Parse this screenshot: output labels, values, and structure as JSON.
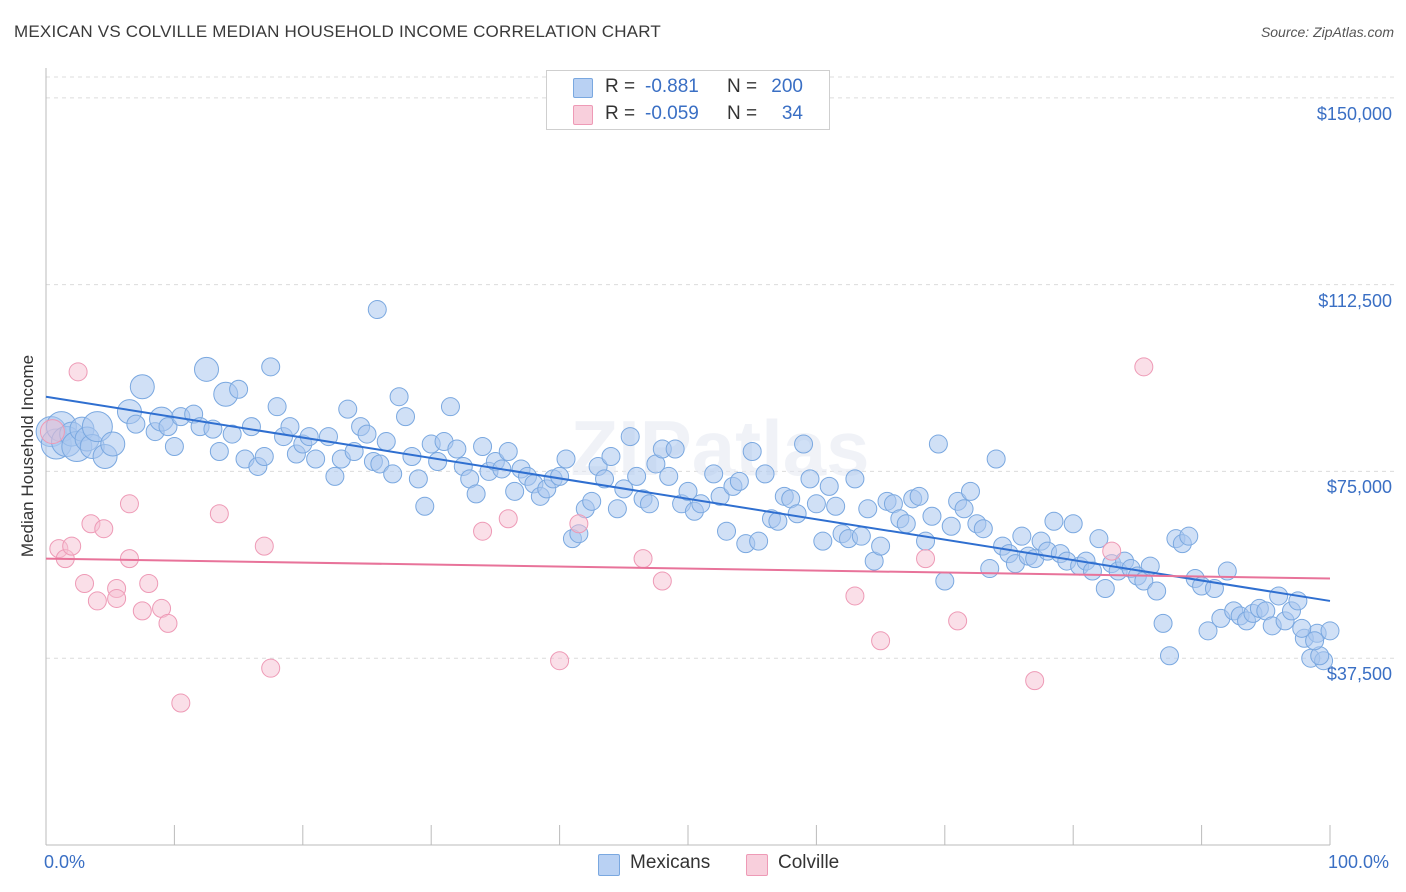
{
  "chart_data": {
    "type": "scatter",
    "title": "MEXICAN VS COLVILLE MEDIAN HOUSEHOLD INCOME CORRELATION CHART",
    "source": "Source: ZipAtlas.com",
    "ylabel": "Median Household Income",
    "xlim": [
      0,
      100
    ],
    "ylim": [
      0,
      157000
    ],
    "grid": "horizontal dashed",
    "legend_placement": "top-center and bottom-center",
    "x_tick_labels": {
      "left": "0.0%",
      "right": "100.0%"
    },
    "y_ticks": [
      {
        "value": 37500,
        "label": "$37,500"
      },
      {
        "value": 75000,
        "label": "$75,000"
      },
      {
        "value": 112500,
        "label": "$112,500"
      },
      {
        "value": 150000,
        "label": "$150,000"
      }
    ],
    "watermark": "ZIPatlas",
    "legend": [
      {
        "name": "Mexicans",
        "r_label": "R =",
        "r_value": "-0.881",
        "n_label": "N =",
        "n_value": "200",
        "color": "#8db6e8",
        "fill": "#a9c7ef"
      },
      {
        "name": "Colville",
        "r_label": "R =",
        "r_value": "-0.059",
        "n_label": "N =",
        "n_value": "34",
        "color": "#ee9ab6",
        "fill": "#f6c0d2"
      }
    ],
    "series": [
      {
        "name": "Mexicans",
        "color": "#7aa8e0",
        "line_color": "#2f6fd0",
        "trend": {
          "x": [
            0,
            100
          ],
          "y": [
            90000,
            49000
          ]
        },
        "points": [
          [
            0.4,
            83000,
            3
          ],
          [
            0.8,
            80500,
            3
          ],
          [
            1.2,
            84000,
            3
          ],
          [
            1.6,
            81000,
            3
          ],
          [
            2.0,
            82500,
            2
          ],
          [
            2.4,
            80000,
            3
          ],
          [
            2.8,
            83500,
            2
          ],
          [
            3.2,
            81500,
            2
          ],
          [
            3.6,
            80000,
            2
          ],
          [
            4.0,
            84000,
            3
          ],
          [
            4.6,
            78000,
            2
          ],
          [
            5.2,
            80500,
            2
          ],
          [
            6.5,
            87000,
            2
          ],
          [
            7.0,
            84500,
            1
          ],
          [
            7.5,
            92000,
            2
          ],
          [
            8.5,
            83000,
            1
          ],
          [
            9.0,
            85500,
            2
          ],
          [
            9.5,
            84000,
            1
          ],
          [
            10.0,
            80000,
            1
          ],
          [
            10.5,
            86000,
            1
          ],
          [
            11.5,
            86500,
            1
          ],
          [
            12.0,
            84000,
            1
          ],
          [
            12.5,
            95500,
            2
          ],
          [
            13.0,
            83500,
            1
          ],
          [
            13.5,
            79000,
            1
          ],
          [
            14.0,
            90500,
            2
          ],
          [
            14.5,
            82500,
            1
          ],
          [
            15.0,
            91500,
            1
          ],
          [
            15.5,
            77500,
            1
          ],
          [
            16.0,
            84000,
            1
          ],
          [
            16.5,
            76000,
            1
          ],
          [
            17.0,
            78000,
            1
          ],
          [
            17.5,
            96000,
            1
          ],
          [
            18.0,
            88000,
            1
          ],
          [
            18.5,
            82000,
            1
          ],
          [
            19.0,
            84000,
            1
          ],
          [
            19.5,
            78500,
            1
          ],
          [
            20.0,
            80500,
            1
          ],
          [
            20.5,
            82000,
            1
          ],
          [
            21.0,
            77500,
            1
          ],
          [
            22.0,
            82000,
            1
          ],
          [
            22.5,
            74000,
            1
          ],
          [
            23.0,
            77500,
            1
          ],
          [
            23.5,
            87500,
            1
          ],
          [
            24.0,
            79000,
            1
          ],
          [
            24.5,
            84000,
            1
          ],
          [
            25.0,
            82500,
            1
          ],
          [
            25.5,
            77000,
            1
          ],
          [
            25.8,
            107500,
            1
          ],
          [
            26.0,
            76500,
            1
          ],
          [
            26.5,
            81000,
            1
          ],
          [
            27.0,
            74500,
            1
          ],
          [
            27.5,
            90000,
            1
          ],
          [
            28.0,
            86000,
            1
          ],
          [
            28.5,
            78000,
            1
          ],
          [
            29.0,
            73500,
            1
          ],
          [
            29.5,
            68000,
            1
          ],
          [
            30.0,
            80500,
            1
          ],
          [
            30.5,
            77000,
            1
          ],
          [
            31.0,
            81000,
            1
          ],
          [
            31.5,
            88000,
            1
          ],
          [
            32.0,
            79500,
            1
          ],
          [
            32.5,
            76000,
            1
          ],
          [
            33.0,
            73500,
            1
          ],
          [
            33.5,
            70500,
            1
          ],
          [
            34.0,
            80000,
            1
          ],
          [
            34.5,
            75000,
            1
          ],
          [
            35.0,
            77000,
            1
          ],
          [
            35.5,
            75500,
            1
          ],
          [
            36.0,
            79000,
            1
          ],
          [
            36.5,
            71000,
            1
          ],
          [
            37.0,
            75500,
            1
          ],
          [
            37.5,
            74000,
            1
          ],
          [
            38.0,
            72500,
            1
          ],
          [
            38.5,
            70000,
            1
          ],
          [
            39.0,
            71500,
            1
          ],
          [
            39.5,
            73500,
            1
          ],
          [
            40.0,
            74000,
            1
          ],
          [
            40.5,
            77500,
            1
          ],
          [
            41.0,
            61500,
            1
          ],
          [
            41.5,
            62500,
            1
          ],
          [
            42.0,
            67500,
            1
          ],
          [
            42.5,
            69000,
            1
          ],
          [
            43.0,
            76000,
            1
          ],
          [
            43.5,
            73500,
            1
          ],
          [
            44.0,
            78000,
            1
          ],
          [
            44.5,
            67500,
            1
          ],
          [
            45.0,
            71500,
            1
          ],
          [
            45.5,
            82000,
            1
          ],
          [
            46.0,
            74000,
            1
          ],
          [
            46.5,
            69500,
            1
          ],
          [
            47.0,
            68500,
            1
          ],
          [
            47.5,
            76500,
            1
          ],
          [
            48.0,
            79500,
            1
          ],
          [
            48.5,
            74000,
            1
          ],
          [
            49.0,
            79500,
            1
          ],
          [
            49.5,
            68500,
            1
          ],
          [
            50.0,
            71000,
            1
          ],
          [
            50.5,
            67000,
            1
          ],
          [
            51.0,
            68500,
            1
          ],
          [
            52.0,
            74500,
            1
          ],
          [
            52.5,
            70000,
            1
          ],
          [
            53.0,
            63000,
            1
          ],
          [
            53.5,
            72000,
            1
          ],
          [
            54.0,
            73000,
            1
          ],
          [
            54.5,
            60500,
            1
          ],
          [
            55.0,
            79000,
            1
          ],
          [
            55.5,
            61000,
            1
          ],
          [
            56.0,
            74500,
            1
          ],
          [
            56.5,
            65500,
            1
          ],
          [
            57.0,
            65000,
            1
          ],
          [
            57.5,
            70000,
            1
          ],
          [
            58.0,
            69500,
            1
          ],
          [
            58.5,
            66500,
            1
          ],
          [
            59.0,
            80500,
            1
          ],
          [
            59.5,
            73500,
            1
          ],
          [
            60.0,
            68500,
            1
          ],
          [
            60.5,
            61000,
            1
          ],
          [
            61.0,
            72000,
            1
          ],
          [
            61.5,
            68000,
            1
          ],
          [
            62.0,
            62500,
            1
          ],
          [
            62.5,
            61500,
            1
          ],
          [
            63.0,
            73500,
            1
          ],
          [
            63.5,
            62000,
            1
          ],
          [
            64.0,
            67500,
            1
          ],
          [
            64.5,
            57000,
            1
          ],
          [
            65.0,
            60000,
            1
          ],
          [
            65.5,
            69000,
            1
          ],
          [
            66.0,
            68500,
            1
          ],
          [
            66.5,
            65500,
            1
          ],
          [
            67.0,
            64500,
            1
          ],
          [
            67.5,
            69500,
            1
          ],
          [
            68.0,
            70000,
            1
          ],
          [
            68.5,
            61000,
            1
          ],
          [
            69.0,
            66000,
            1
          ],
          [
            69.5,
            80500,
            1
          ],
          [
            70.0,
            53000,
            1
          ],
          [
            70.5,
            64000,
            1
          ],
          [
            71.0,
            69000,
            1
          ],
          [
            71.5,
            67500,
            1
          ],
          [
            72.0,
            71000,
            1
          ],
          [
            72.5,
            64500,
            1
          ],
          [
            73.0,
            63500,
            1
          ],
          [
            73.5,
            55500,
            1
          ],
          [
            74.0,
            77500,
            1
          ],
          [
            74.5,
            60000,
            1
          ],
          [
            75.0,
            58500,
            1
          ],
          [
            75.5,
            56500,
            1
          ],
          [
            76.0,
            62000,
            1
          ],
          [
            76.5,
            58000,
            1
          ],
          [
            77.0,
            57500,
            1
          ],
          [
            77.5,
            61000,
            1
          ],
          [
            78.0,
            59000,
            1
          ],
          [
            78.5,
            65000,
            1
          ],
          [
            79.0,
            58500,
            1
          ],
          [
            79.5,
            57000,
            1
          ],
          [
            80.0,
            64500,
            1
          ],
          [
            80.5,
            56000,
            1
          ],
          [
            81.0,
            57000,
            1
          ],
          [
            81.5,
            55000,
            1
          ],
          [
            82.0,
            61500,
            1
          ],
          [
            82.5,
            51500,
            1
          ],
          [
            83.0,
            56500,
            1
          ],
          [
            83.5,
            55000,
            1
          ],
          [
            84.0,
            57000,
            1
          ],
          [
            84.5,
            55500,
            1
          ],
          [
            85.0,
            54000,
            1
          ],
          [
            85.5,
            53000,
            1
          ],
          [
            86.0,
            56000,
            1
          ],
          [
            86.5,
            51000,
            1
          ],
          [
            87.0,
            44500,
            1
          ],
          [
            87.5,
            38000,
            1
          ],
          [
            88.0,
            61500,
            1
          ],
          [
            88.5,
            60500,
            1
          ],
          [
            89.0,
            62000,
            1
          ],
          [
            89.5,
            53500,
            1
          ],
          [
            90.0,
            52000,
            1
          ],
          [
            90.5,
            43000,
            1
          ],
          [
            91.0,
            51500,
            1
          ],
          [
            91.5,
            45500,
            1
          ],
          [
            92.0,
            55000,
            1
          ],
          [
            92.5,
            47000,
            1
          ],
          [
            93.0,
            46000,
            1
          ],
          [
            93.5,
            45000,
            1
          ],
          [
            94.0,
            46500,
            1
          ],
          [
            94.5,
            47500,
            1
          ],
          [
            95.0,
            47000,
            1
          ],
          [
            95.5,
            44000,
            1
          ],
          [
            96.0,
            50000,
            1
          ],
          [
            96.5,
            45000,
            1
          ],
          [
            97.0,
            47000,
            1
          ],
          [
            97.5,
            49000,
            1
          ],
          [
            98.0,
            41500,
            1
          ],
          [
            98.5,
            37500,
            1
          ],
          [
            99.0,
            42500,
            1
          ],
          [
            99.5,
            37000,
            1
          ],
          [
            100.0,
            43000,
            1
          ],
          [
            99.2,
            38000,
            1
          ],
          [
            98.8,
            41000,
            1
          ],
          [
            97.8,
            43500,
            1
          ]
        ]
      },
      {
        "name": "Colville",
        "color": "#ee9ab6",
        "line_color": "#e8739a",
        "trend": {
          "x": [
            0,
            100
          ],
          "y": [
            57500,
            53500
          ]
        },
        "points": [
          [
            0.5,
            83000,
            2
          ],
          [
            1.0,
            59500,
            1
          ],
          [
            1.5,
            57500,
            1
          ],
          [
            2.0,
            60000,
            1
          ],
          [
            2.5,
            95000,
            1
          ],
          [
            3.0,
            52500,
            1
          ],
          [
            3.5,
            64500,
            1
          ],
          [
            4.0,
            49000,
            1
          ],
          [
            4.5,
            63500,
            1
          ],
          [
            5.5,
            51500,
            1
          ],
          [
            5.5,
            49500,
            1
          ],
          [
            6.5,
            57500,
            1
          ],
          [
            6.5,
            68500,
            1
          ],
          [
            7.5,
            47000,
            1
          ],
          [
            8.0,
            52500,
            1
          ],
          [
            9.0,
            47500,
            1
          ],
          [
            9.5,
            44500,
            1
          ],
          [
            10.5,
            28500,
            1
          ],
          [
            13.5,
            66500,
            1
          ],
          [
            17.0,
            60000,
            1
          ],
          [
            17.5,
            35500,
            1
          ],
          [
            34.0,
            63000,
            1
          ],
          [
            36.0,
            65500,
            1
          ],
          [
            40.0,
            37000,
            1
          ],
          [
            41.5,
            64500,
            1
          ],
          [
            46.5,
            57500,
            1
          ],
          [
            48.0,
            53000,
            1
          ],
          [
            63.0,
            50000,
            1
          ],
          [
            65.0,
            41000,
            1
          ],
          [
            68.5,
            57500,
            1
          ],
          [
            71.0,
            45000,
            1
          ],
          [
            77.0,
            33000,
            1
          ],
          [
            83.0,
            59000,
            1
          ],
          [
            85.5,
            96000,
            1
          ]
        ]
      }
    ]
  }
}
